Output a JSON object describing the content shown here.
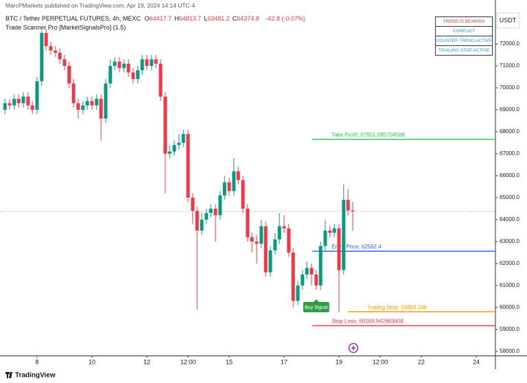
{
  "header": {
    "publisher": "MarcPMarkets published on TradingView.com, Apr 19, 2024 14:14 UTC-4",
    "symbol": "BTC / Tether PERPETUAL FUTURES, 4h, MEXC",
    "ohlc": [
      {
        "key": "O",
        "text": "64417.7"
      },
      {
        "key": "H",
        "text": "64813.7"
      },
      {
        "key": "L",
        "text": "63481.2"
      },
      {
        "key": "C",
        "text": "64374.8"
      }
    ],
    "change": "-42.8 (-0.07%)",
    "indicator": "Trade Scanner Pro [MarketSignalsPro] (1.5)"
  },
  "status_panel": [
    {
      "text": "TREND IS BEARISH",
      "color": "#e53935"
    },
    {
      "text": "CONFLICT",
      "color": "#2196f3"
    },
    {
      "text": "COUNTER TREND ACTIVE",
      "color": "#2196f3"
    },
    {
      "text": "TRAILING STOP ACTIVE",
      "color": "#2196f3"
    }
  ],
  "chart_data": {
    "type": "candlestick",
    "currency": "USDT",
    "x": [
      6.83,
      7,
      7.17,
      7.33,
      7.5,
      7.67,
      7.83,
      8,
      8.17,
      8.33,
      8.5,
      8.67,
      8.83,
      9,
      9.17,
      9.33,
      9.5,
      9.67,
      9.83,
      10,
      10.17,
      10.33,
      10.5,
      10.67,
      10.83,
      11,
      11.17,
      11.33,
      11.5,
      11.67,
      11.83,
      12,
      12.17,
      12.33,
      12.5,
      12.67,
      12.83,
      13,
      13.17,
      13.33,
      13.5,
      13.67,
      13.83,
      14,
      14.17,
      14.33,
      14.5,
      14.67,
      14.83,
      15,
      15.17,
      15.33,
      15.5,
      15.67,
      15.83,
      16,
      16.17,
      16.33,
      16.5,
      16.67,
      16.83,
      17,
      17.17,
      17.33,
      17.5,
      17.67,
      17.83,
      18,
      18.17,
      18.33,
      18.5,
      18.67,
      18.83,
      19,
      19.17,
      19.33,
      19.5
    ],
    "open": [
      69000,
      69300,
      69200,
      69500,
      69300,
      69600,
      69200,
      69000,
      70300,
      72500,
      71900,
      71700,
      71600,
      71300,
      71000,
      70200,
      69300,
      69000,
      69200,
      69400,
      69200,
      69500,
      68600,
      70200,
      71000,
      71200,
      70900,
      71100,
      70700,
      70400,
      70800,
      71300,
      71000,
      71300,
      71100,
      69600,
      67000,
      67100,
      67400,
      67500,
      67900,
      65000,
      64400,
      63500,
      64000,
      64300,
      64500,
      64200,
      65100,
      65700,
      65300,
      66200,
      65800,
      64500,
      63200,
      63000,
      62900,
      63700,
      61600,
      62600,
      63100,
      63700,
      63600,
      62500,
      60300,
      61000,
      61500,
      61800,
      61500,
      61000,
      62800,
      63500,
      63400,
      63600,
      61700,
      64900,
      64417.7
    ],
    "high": [
      69500,
      69500,
      69700,
      69700,
      69800,
      69800,
      69400,
      70500,
      72600,
      72700,
      72100,
      71900,
      71800,
      71500,
      71200,
      70400,
      69500,
      69400,
      69600,
      69600,
      69700,
      69700,
      70400,
      71300,
      71400,
      71400,
      71300,
      71300,
      70900,
      71000,
      71500,
      71500,
      71500,
      71500,
      71300,
      69800,
      67400,
      67600,
      67900,
      68100,
      68100,
      65200,
      64600,
      64300,
      64500,
      64700,
      64700,
      65300,
      66000,
      65900,
      66800,
      66400,
      66000,
      64700,
      63400,
      63300,
      64000,
      63900,
      62800,
      63400,
      64300,
      64200,
      63800,
      62700,
      61200,
      61700,
      62100,
      62000,
      61700,
      63000,
      64000,
      63700,
      63800,
      63800,
      65600,
      65400,
      64813.7
    ],
    "low": [
      68800,
      69000,
      69000,
      69100,
      69100,
      69000,
      68800,
      68800,
      70100,
      71700,
      71500,
      71400,
      71100,
      70800,
      70000,
      69100,
      68600,
      68800,
      69000,
      69000,
      69000,
      67600,
      68400,
      70000,
      70800,
      70700,
      70700,
      70500,
      70200,
      70200,
      70600,
      70800,
      70800,
      70900,
      69400,
      65200,
      66800,
      66900,
      67200,
      67300,
      64800,
      63800,
      59900,
      63300,
      63800,
      64100,
      63000,
      64000,
      64900,
      65100,
      65100,
      65600,
      64300,
      63000,
      62500,
      62000,
      62700,
      61400,
      61400,
      62400,
      62900,
      63400,
      62300,
      60000,
      60100,
      60800,
      61300,
      61000,
      60800,
      60800,
      62600,
      63200,
      63200,
      59800,
      61500,
      64200,
      63481.2
    ],
    "close": [
      69300,
      69200,
      69500,
      69300,
      69600,
      69200,
      69000,
      70300,
      72500,
      71900,
      71700,
      71600,
      71300,
      71000,
      70200,
      69300,
      69000,
      69200,
      69400,
      69200,
      69500,
      68600,
      70200,
      71000,
      71200,
      70900,
      71100,
      70700,
      70400,
      70800,
      71300,
      71000,
      71300,
      71100,
      69600,
      67000,
      67100,
      67400,
      67500,
      67900,
      65000,
      64400,
      63500,
      64000,
      64300,
      64500,
      64200,
      65100,
      65700,
      65300,
      66200,
      65800,
      64500,
      63200,
      63000,
      62900,
      63700,
      61600,
      62600,
      63100,
      63700,
      63600,
      62500,
      60300,
      61000,
      61500,
      61800,
      61500,
      61000,
      62800,
      63500,
      63400,
      63600,
      61700,
      64900,
      64417.7,
      64374.8
    ],
    "up_color": "#089981",
    "down_color": "#f23645",
    "xlim": [
      6.65,
      24.7
    ],
    "xticks": [
      8,
      10,
      12,
      {
        "value": 13.5,
        "label": "12:00"
      },
      15,
      17,
      19,
      {
        "value": 20.5,
        "label": "12:00"
      },
      22,
      24
    ],
    "ylim": [
      57810,
      74000
    ],
    "yticks": [
      {
        "value": 58000,
        "label": "58000.0"
      },
      {
        "value": 59000,
        "label": "59000.0"
      },
      {
        "value": 60000,
        "label": "60000.0"
      },
      {
        "value": 61000,
        "label": "61000.0"
      },
      {
        "value": 62000,
        "label": "62000.0"
      },
      {
        "value": 63000,
        "label": "63000.0"
      },
      {
        "value": 64000,
        "label": "64000.0"
      },
      {
        "value": 65000,
        "label": "65000.0"
      },
      {
        "value": 66000,
        "label": "66000.0"
      },
      {
        "value": 67000,
        "label": "67000.0"
      },
      {
        "value": 68000,
        "label": "68000.0"
      },
      {
        "value": 69000,
        "label": "69000.0"
      },
      {
        "value": 70000,
        "label": "70000.0"
      },
      {
        "value": 71000,
        "label": "71000.0"
      },
      {
        "value": 72000,
        "label": "72000.0"
      }
    ],
    "grid": false,
    "levels": [
      {
        "label": "Take Profit: 67651.085704588",
        "value": 67651.085704588,
        "x_start": 18.03,
        "color": "#2fc75a"
      },
      {
        "label": "Entry Price: 62562.4",
        "value": 62562.4,
        "x_start": 18.03,
        "color": "#2962ff"
      },
      {
        "label": "Trailing Stop: 59803.248",
        "value": 59803.248,
        "x_start": 19.33,
        "color": "#ff9800"
      },
      {
        "label": "Stop Loss: 59169.942863608",
        "value": 59169.942863608,
        "x_start": 18.03,
        "color": "#f23645"
      }
    ],
    "signals": [
      {
        "text": "Buy Signal",
        "x": 18.17,
        "color": "#2e9e45"
      }
    ]
  },
  "footer": {
    "logo": "TradingView"
  }
}
